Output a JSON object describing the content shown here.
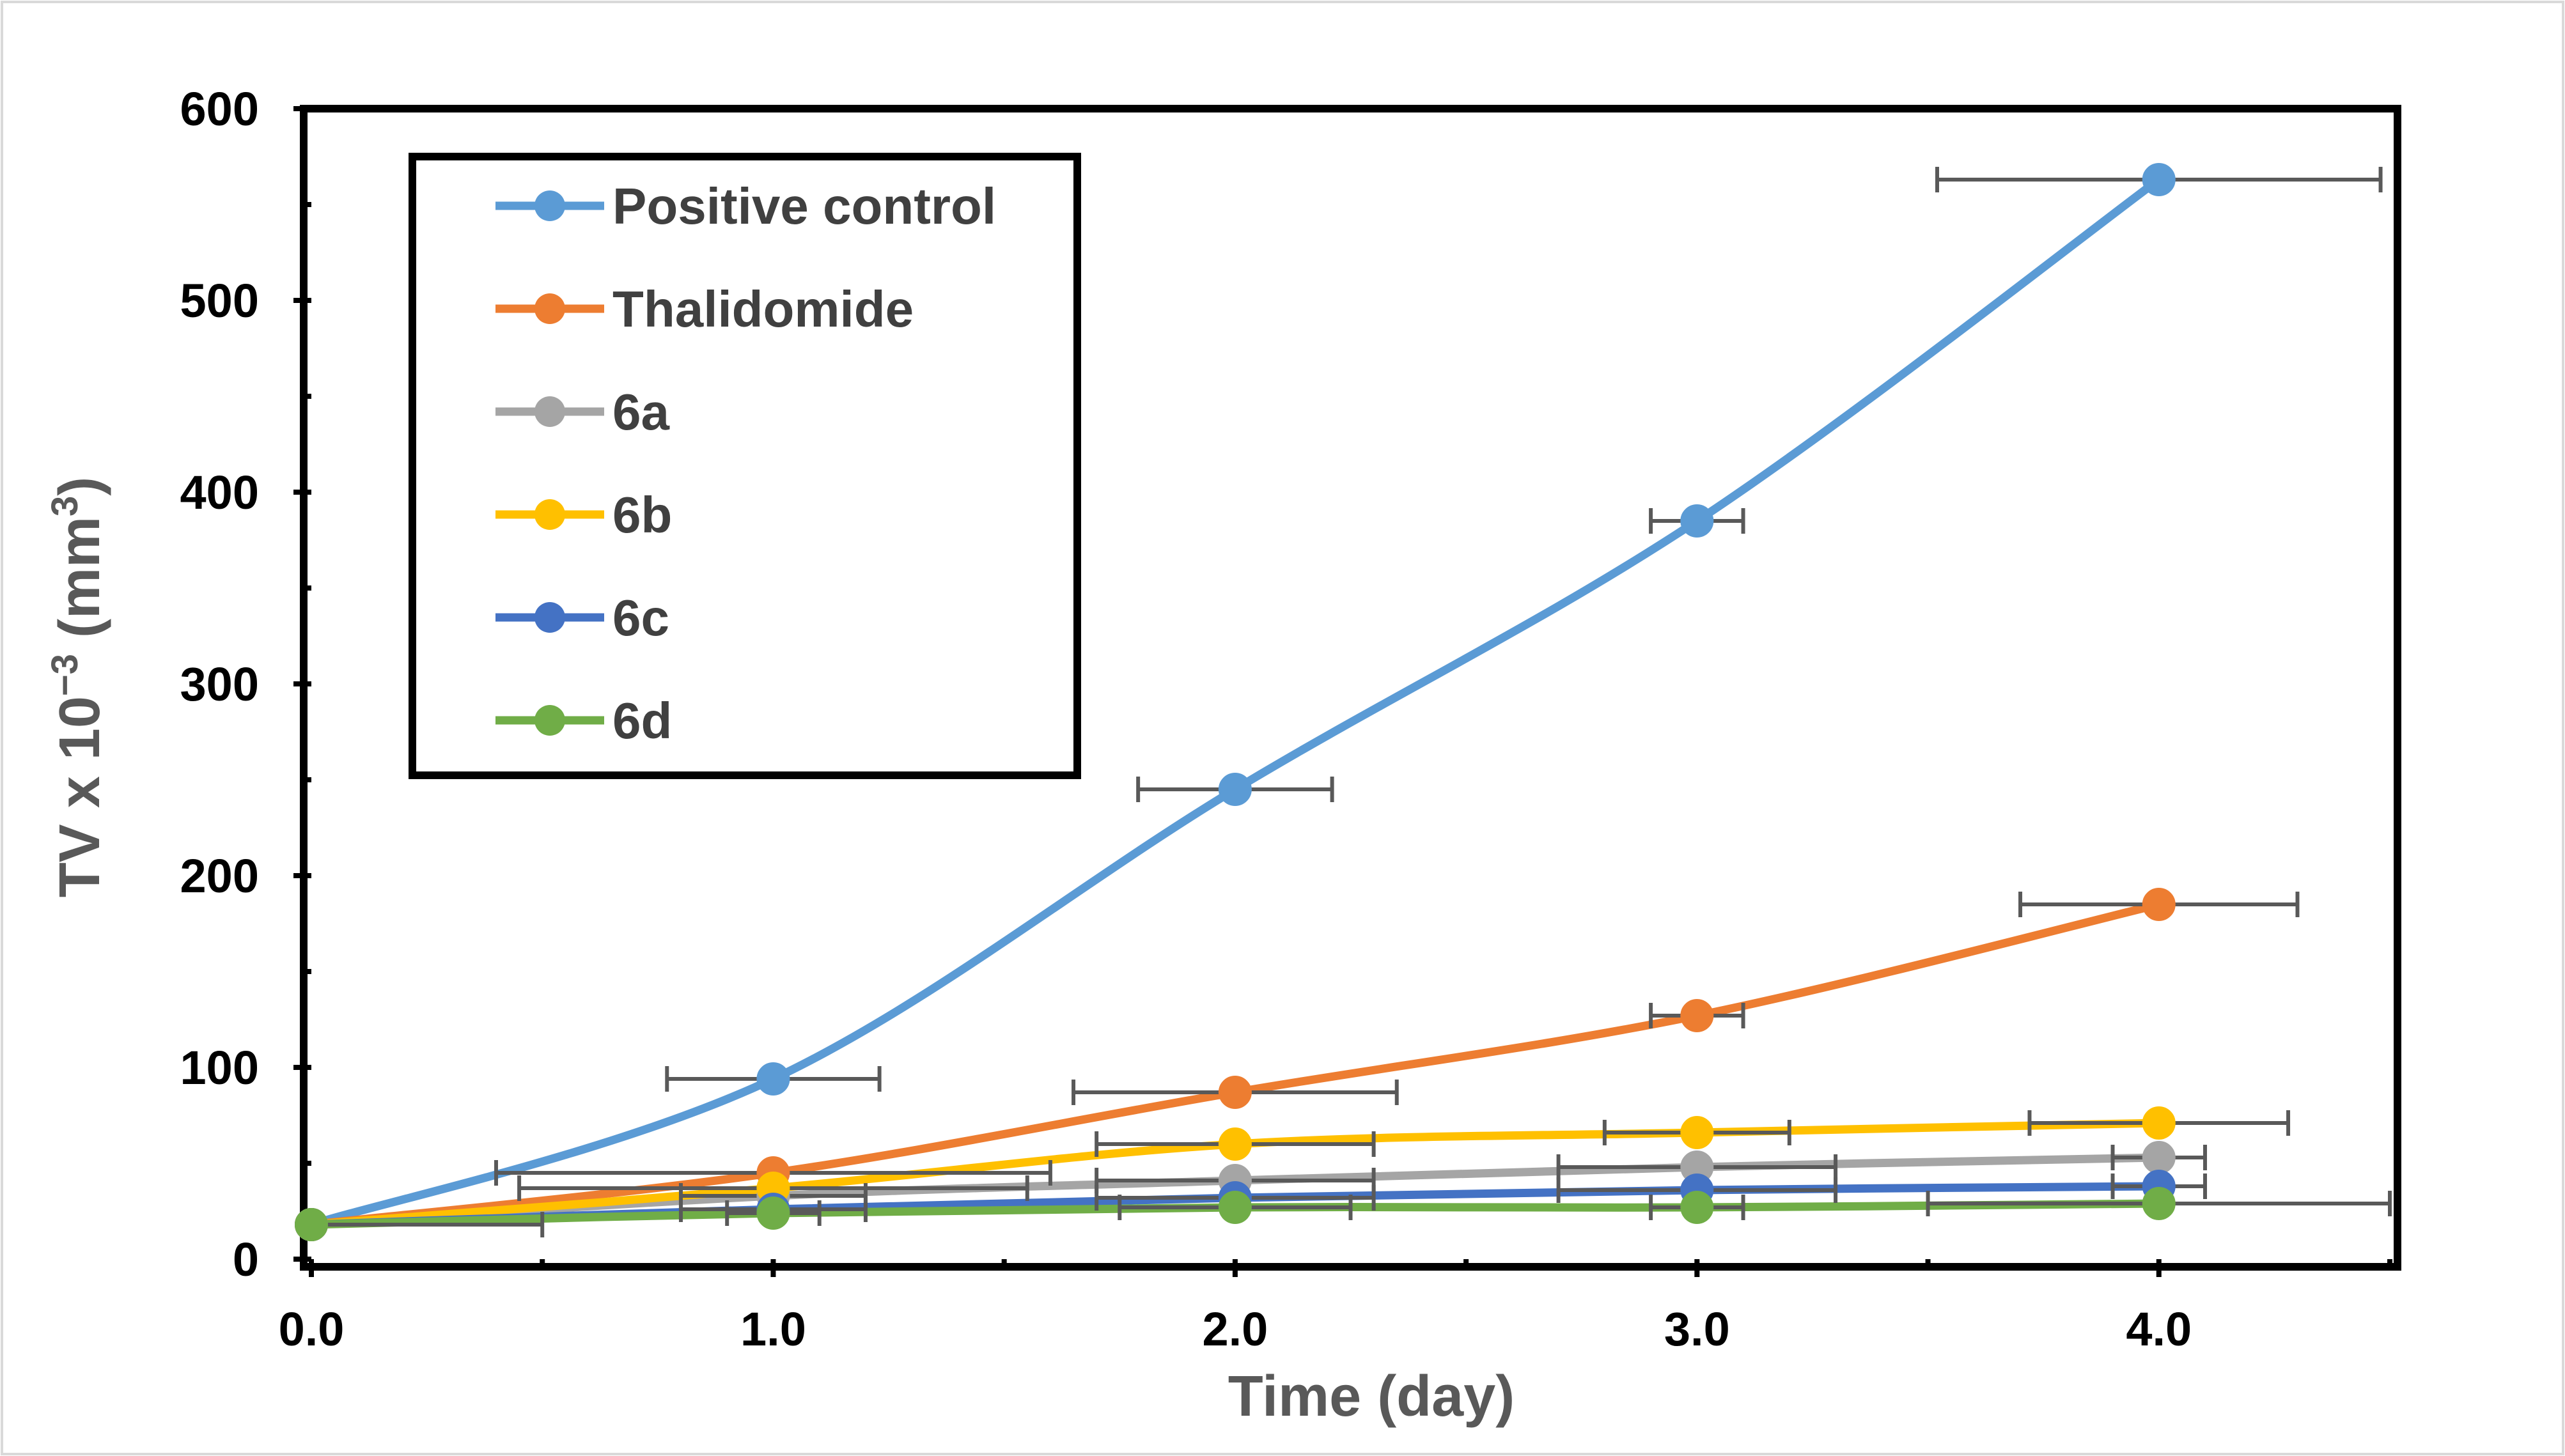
{
  "chart_data": {
    "type": "line",
    "title": "",
    "xlabel": "Time (day)",
    "ylabel": "TV x 10",
    "ylabel_exp": "−3",
    "ylabel_unit": " (mm",
    "ylabel_unit_exp": "3",
    "ylabel_close": ")",
    "xlim": [
      0,
      4.5
    ],
    "ylim": [
      0,
      600
    ],
    "x_ticks": [
      0,
      1,
      2,
      3,
      4
    ],
    "x_tick_labels": [
      "0.0",
      "1.0",
      "2.0",
      "3.0",
      "4.0"
    ],
    "y_ticks": [
      0,
      100,
      200,
      300,
      400,
      500,
      600
    ],
    "y_tick_labels": [
      "0",
      "100",
      "200",
      "300",
      "400",
      "500",
      "600"
    ],
    "legend_position": "top-left",
    "x": [
      0,
      1,
      2,
      3,
      4
    ],
    "series": [
      {
        "name": "Positive control",
        "color": "#5B9BD5",
        "values": [
          18,
          94,
          245,
          385,
          563
        ],
        "xerr": [
          0,
          0.23,
          0.21,
          0.1,
          0.48
        ]
      },
      {
        "name": "Thalidomide",
        "color": "#ED7D31",
        "values": [
          18,
          45,
          87,
          127,
          185
        ],
        "xerr": [
          0,
          0.6,
          0.35,
          0.1,
          0.3
        ]
      },
      {
        "name": "6a",
        "color": "#A5A5A5",
        "values": [
          18,
          33,
          41,
          48,
          53
        ],
        "xerr": [
          0,
          0.2,
          0.3,
          0.3,
          0.1
        ]
      },
      {
        "name": "6b",
        "color": "#FFC000",
        "values": [
          18,
          37,
          60,
          66,
          71
        ],
        "xerr": [
          0,
          0.55,
          0.3,
          0.2,
          0.28
        ]
      },
      {
        "name": "6c",
        "color": "#4472C4",
        "values": [
          18,
          26,
          32,
          36,
          38
        ],
        "xerr": [
          0,
          0.2,
          0.3,
          0.3,
          0.1
        ]
      },
      {
        "name": "6d",
        "color": "#70AD47",
        "values": [
          18,
          24,
          27,
          27,
          29
        ],
        "xerr": [
          0.5,
          0.1,
          0.25,
          0.1,
          0.5
        ]
      }
    ]
  }
}
